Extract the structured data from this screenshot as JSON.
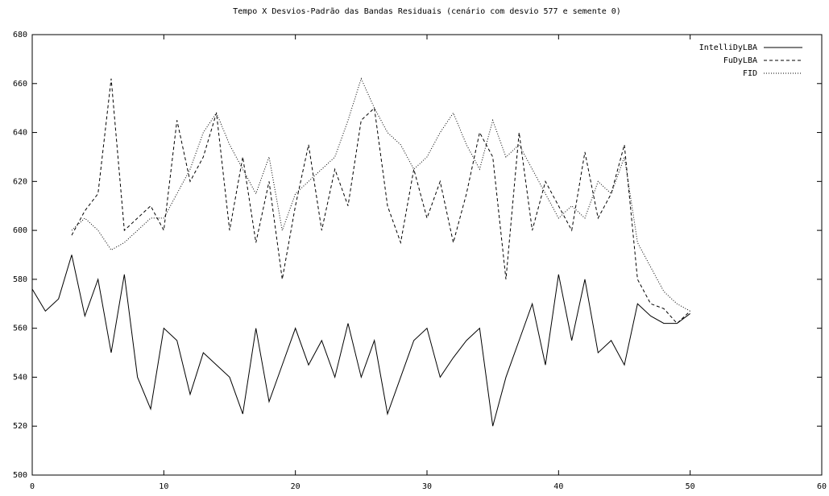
{
  "chart_data": {
    "type": "line",
    "title": "Tempo X Desvios-Padrão das Bandas Residuais (cenário com desvio 577 e semente 0)",
    "x": [
      0,
      1,
      2,
      3,
      4,
      5,
      6,
      7,
      8,
      9,
      10,
      11,
      12,
      13,
      14,
      15,
      16,
      17,
      18,
      19,
      20,
      21,
      22,
      23,
      24,
      25,
      26,
      27,
      28,
      29,
      30,
      31,
      32,
      33,
      34,
      35,
      36,
      37,
      38,
      39,
      40,
      41,
      42,
      43,
      44,
      45,
      46,
      47,
      48,
      49,
      50
    ],
    "series": [
      {
        "name": "IntelliDyLBA",
        "color": "#000000",
        "dash": "none",
        "values": [
          576,
          567,
          572,
          590,
          565,
          580,
          550,
          582,
          540,
          527,
          560,
          555,
          533,
          550,
          545,
          540,
          525,
          560,
          530,
          545,
          560,
          545,
          555,
          540,
          562,
          540,
          555,
          525,
          540,
          555,
          560,
          540,
          548,
          555,
          560,
          520,
          540,
          555,
          570,
          545,
          582,
          555,
          580,
          550,
          555,
          545,
          570,
          565,
          562,
          562,
          566
        ]
      },
      {
        "name": "FuDyLBA",
        "color": "#000000",
        "dash": "4 3",
        "values": [
          null,
          null,
          null,
          598,
          608,
          615,
          662,
          600,
          605,
          610,
          600,
          645,
          620,
          630,
          648,
          600,
          630,
          595,
          620,
          580,
          610,
          635,
          600,
          625,
          610,
          645,
          650,
          610,
          595,
          625,
          605,
          620,
          595,
          615,
          640,
          630,
          580,
          640,
          600,
          620,
          610,
          600,
          632,
          605,
          615,
          635,
          580,
          570,
          568,
          562,
          567
        ]
      },
      {
        "name": "FID",
        "color": "#000000",
        "dash": "1 2",
        "values": [
          null,
          null,
          null,
          600,
          605,
          600,
          592,
          595,
          600,
          605,
          605,
          615,
          625,
          640,
          648,
          635,
          625,
          615,
          630,
          600,
          615,
          620,
          625,
          630,
          645,
          662,
          650,
          640,
          635,
          625,
          630,
          640,
          648,
          635,
          625,
          645,
          630,
          635,
          625,
          615,
          605,
          610,
          605,
          620,
          615,
          630,
          595,
          585,
          575,
          570,
          567
        ]
      }
    ],
    "xlim": [
      0,
      60
    ],
    "xticks": [
      0,
      10,
      20,
      30,
      40,
      50,
      60
    ],
    "ylim": [
      500,
      680
    ],
    "yticks": [
      500,
      520,
      540,
      560,
      580,
      600,
      620,
      640,
      660,
      680
    ],
    "legend": "top-right"
  }
}
